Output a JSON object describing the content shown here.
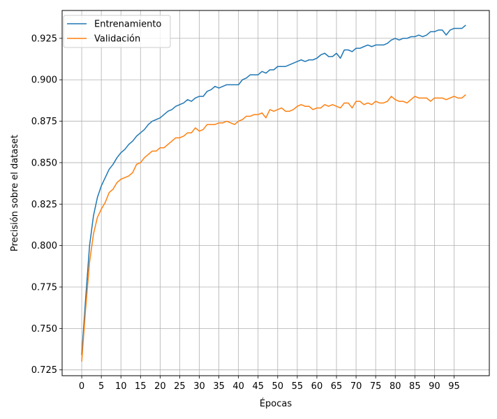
{
  "chart_data": {
    "type": "line",
    "xlabel": "Épocas",
    "ylabel": "Precisión sobre el dataset",
    "xlim": [
      -5,
      104
    ],
    "ylim": [
      0.7215,
      0.9418
    ],
    "xticks": [
      0,
      5,
      10,
      15,
      20,
      25,
      30,
      35,
      40,
      45,
      50,
      55,
      60,
      65,
      70,
      75,
      80,
      85,
      90,
      95
    ],
    "yticks": [
      0.725,
      0.75,
      0.775,
      0.8,
      0.825,
      0.85,
      0.875,
      0.9,
      0.925
    ],
    "ytick_labels": [
      "0.725",
      "0.750",
      "0.775",
      "0.800",
      "0.825",
      "0.850",
      "0.875",
      "0.900",
      "0.925"
    ],
    "grid": true,
    "legend_position": "top-left",
    "series": [
      {
        "name": "Entrenamiento",
        "color": "#1f77b4",
        "values": [
          0.734,
          0.768,
          0.8,
          0.818,
          0.829,
          0.836,
          0.841,
          0.846,
          0.849,
          0.853,
          0.856,
          0.858,
          0.861,
          0.863,
          0.866,
          0.868,
          0.87,
          0.873,
          0.875,
          0.876,
          0.877,
          0.879,
          0.881,
          0.882,
          0.884,
          0.885,
          0.886,
          0.888,
          0.887,
          0.889,
          0.89,
          0.89,
          0.893,
          0.894,
          0.896,
          0.895,
          0.896,
          0.897,
          0.897,
          0.897,
          0.897,
          0.9,
          0.901,
          0.903,
          0.903,
          0.903,
          0.905,
          0.904,
          0.906,
          0.906,
          0.908,
          0.908,
          0.908,
          0.909,
          0.91,
          0.911,
          0.912,
          0.911,
          0.912,
          0.912,
          0.913,
          0.915,
          0.916,
          0.914,
          0.914,
          0.916,
          0.913,
          0.918,
          0.918,
          0.917,
          0.919,
          0.919,
          0.92,
          0.921,
          0.92,
          0.921,
          0.921,
          0.921,
          0.922,
          0.924,
          0.925,
          0.924,
          0.925,
          0.925,
          0.926,
          0.926,
          0.927,
          0.926,
          0.927,
          0.929,
          0.929,
          0.93,
          0.93,
          0.927,
          0.93,
          0.931,
          0.931,
          0.931,
          0.933
        ]
      },
      {
        "name": "Validación",
        "color": "#ff7f0e",
        "values": [
          0.73,
          0.762,
          0.79,
          0.807,
          0.817,
          0.822,
          0.826,
          0.832,
          0.834,
          0.838,
          0.84,
          0.841,
          0.842,
          0.844,
          0.849,
          0.85,
          0.853,
          0.855,
          0.857,
          0.857,
          0.859,
          0.859,
          0.861,
          0.863,
          0.865,
          0.865,
          0.866,
          0.868,
          0.868,
          0.871,
          0.869,
          0.87,
          0.873,
          0.873,
          0.873,
          0.874,
          0.874,
          0.875,
          0.874,
          0.873,
          0.875,
          0.876,
          0.878,
          0.878,
          0.879,
          0.879,
          0.88,
          0.877,
          0.882,
          0.881,
          0.882,
          0.883,
          0.881,
          0.881,
          0.882,
          0.884,
          0.885,
          0.884,
          0.884,
          0.882,
          0.883,
          0.883,
          0.885,
          0.884,
          0.885,
          0.884,
          0.883,
          0.886,
          0.886,
          0.883,
          0.887,
          0.887,
          0.885,
          0.886,
          0.885,
          0.887,
          0.886,
          0.886,
          0.887,
          0.89,
          0.888,
          0.887,
          0.887,
          0.886,
          0.888,
          0.89,
          0.889,
          0.889,
          0.889,
          0.887,
          0.889,
          0.889,
          0.889,
          0.888,
          0.889,
          0.89,
          0.889,
          0.889,
          0.891
        ]
      }
    ]
  }
}
